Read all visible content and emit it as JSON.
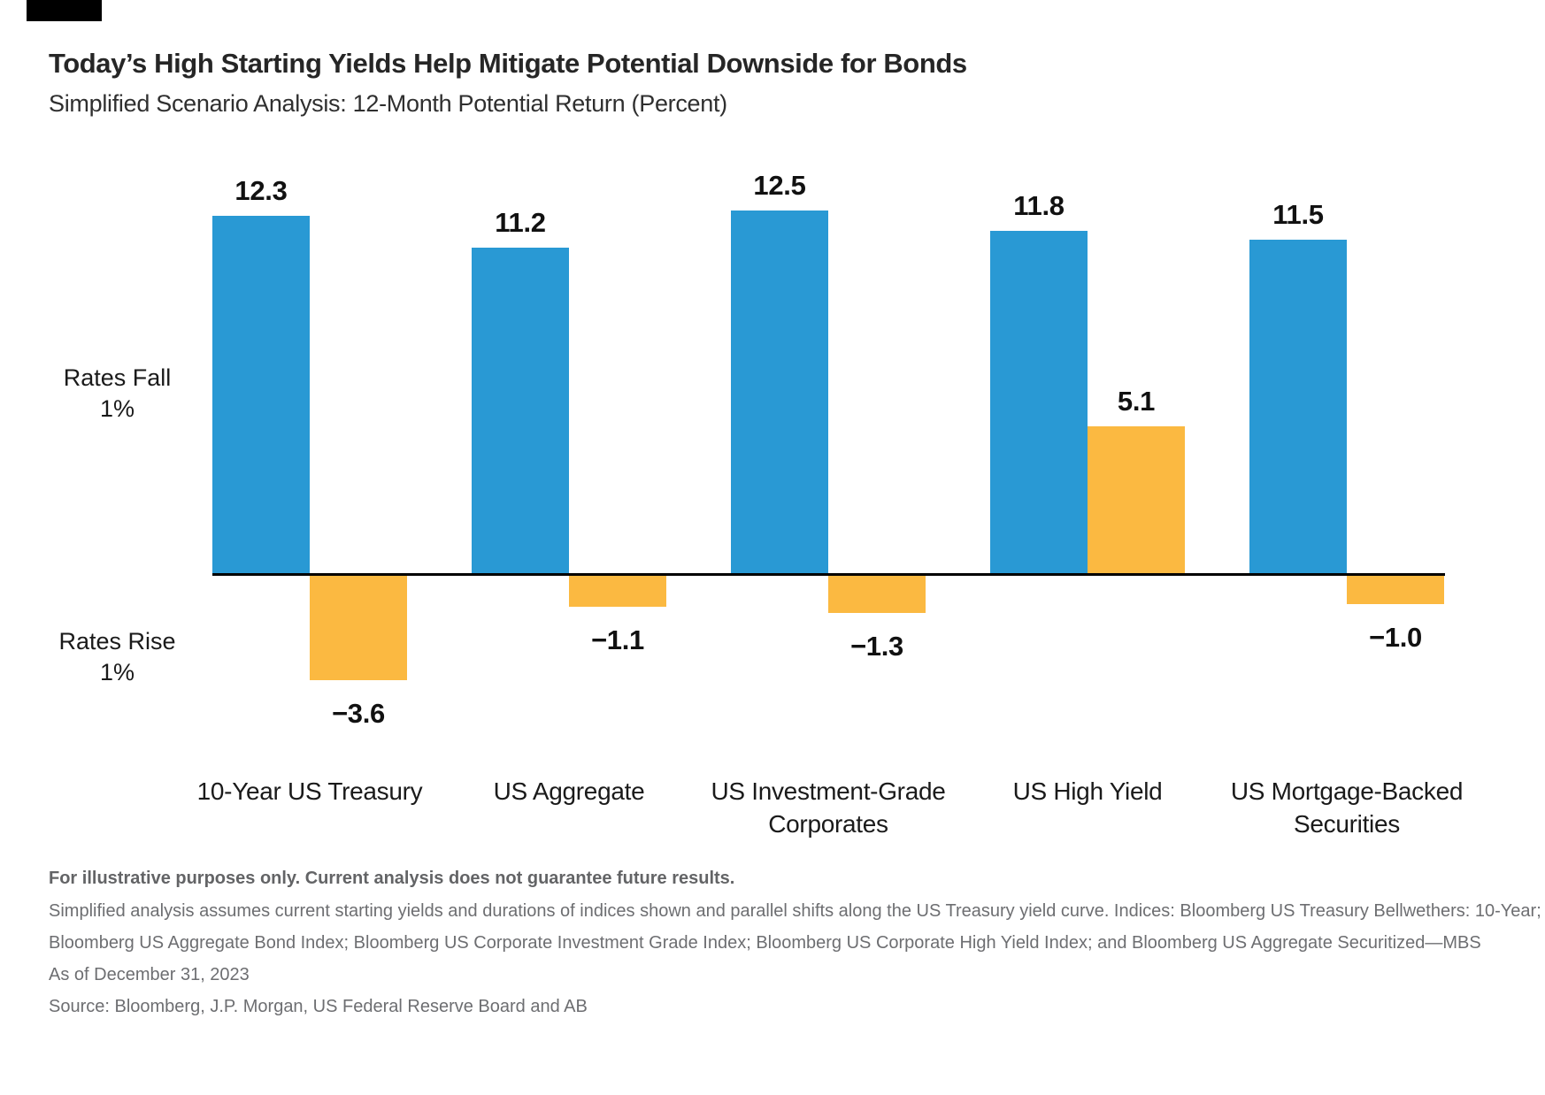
{
  "header": {
    "title": "Today’s High Starting Yields Help Mitigate Potential Downside for Bonds",
    "subtitle": "Simplified Scenario Analysis: 12-Month Potential Return (Percent)"
  },
  "chart_data": {
    "type": "bar",
    "title": "Today’s High Starting Yields Help Mitigate Potential Downside for Bonds",
    "subtitle": "Simplified Scenario Analysis: 12-Month Potential Return (Percent)",
    "categories": [
      "10-Year US Treasury",
      "US Aggregate",
      "US Investment-Grade Corporates",
      "US High Yield",
      "US Mortgage-Backed Securities"
    ],
    "category_label_lines": [
      [
        "10-Year US Treasury"
      ],
      [
        "US Aggregate"
      ],
      [
        "US Investment-Grade",
        "Corporates"
      ],
      [
        "US High Yield"
      ],
      [
        "US Mortgage-Backed",
        "Securities"
      ]
    ],
    "series": [
      {
        "name": "Rates Fall 1%",
        "color": "#2999D4",
        "values": [
          12.3,
          11.2,
          12.5,
          11.8,
          11.5
        ]
      },
      {
        "name": "Rates Rise 1%",
        "color": "#FBB941",
        "values": [
          -3.6,
          -1.1,
          -1.3,
          5.1,
          -1.0
        ]
      }
    ],
    "scenario_labels": [
      {
        "line1": "Rates Fall",
        "line2": "1%"
      },
      {
        "line1": "Rates Rise",
        "line2": "1%"
      }
    ],
    "axis": {
      "baseline_value": 0,
      "grid": false,
      "axis_color": "#000000"
    },
    "value_label_minus_sign": "−",
    "legend_position": "left-axis-labels"
  },
  "footnotes": {
    "disclaimer": "For illustrative purposes only. Current analysis does not guarantee future results.",
    "line2": "Simplified analysis assumes current starting yields and durations of indices shown and parallel shifts along the US Treasury yield curve. Indices: Bloomberg US Treasury Bellwethers: 10-Year;",
    "line3": "Bloomberg US Aggregate Bond Index; Bloomberg US Corporate Investment Grade Index; Bloomberg US Corporate High Yield Index; and Bloomberg US Aggregate Securitized—MBS",
    "as_of": "As of December 31, 2023",
    "source": "Source: Bloomberg, J.P. Morgan, US Federal Reserve Board and AB"
  }
}
